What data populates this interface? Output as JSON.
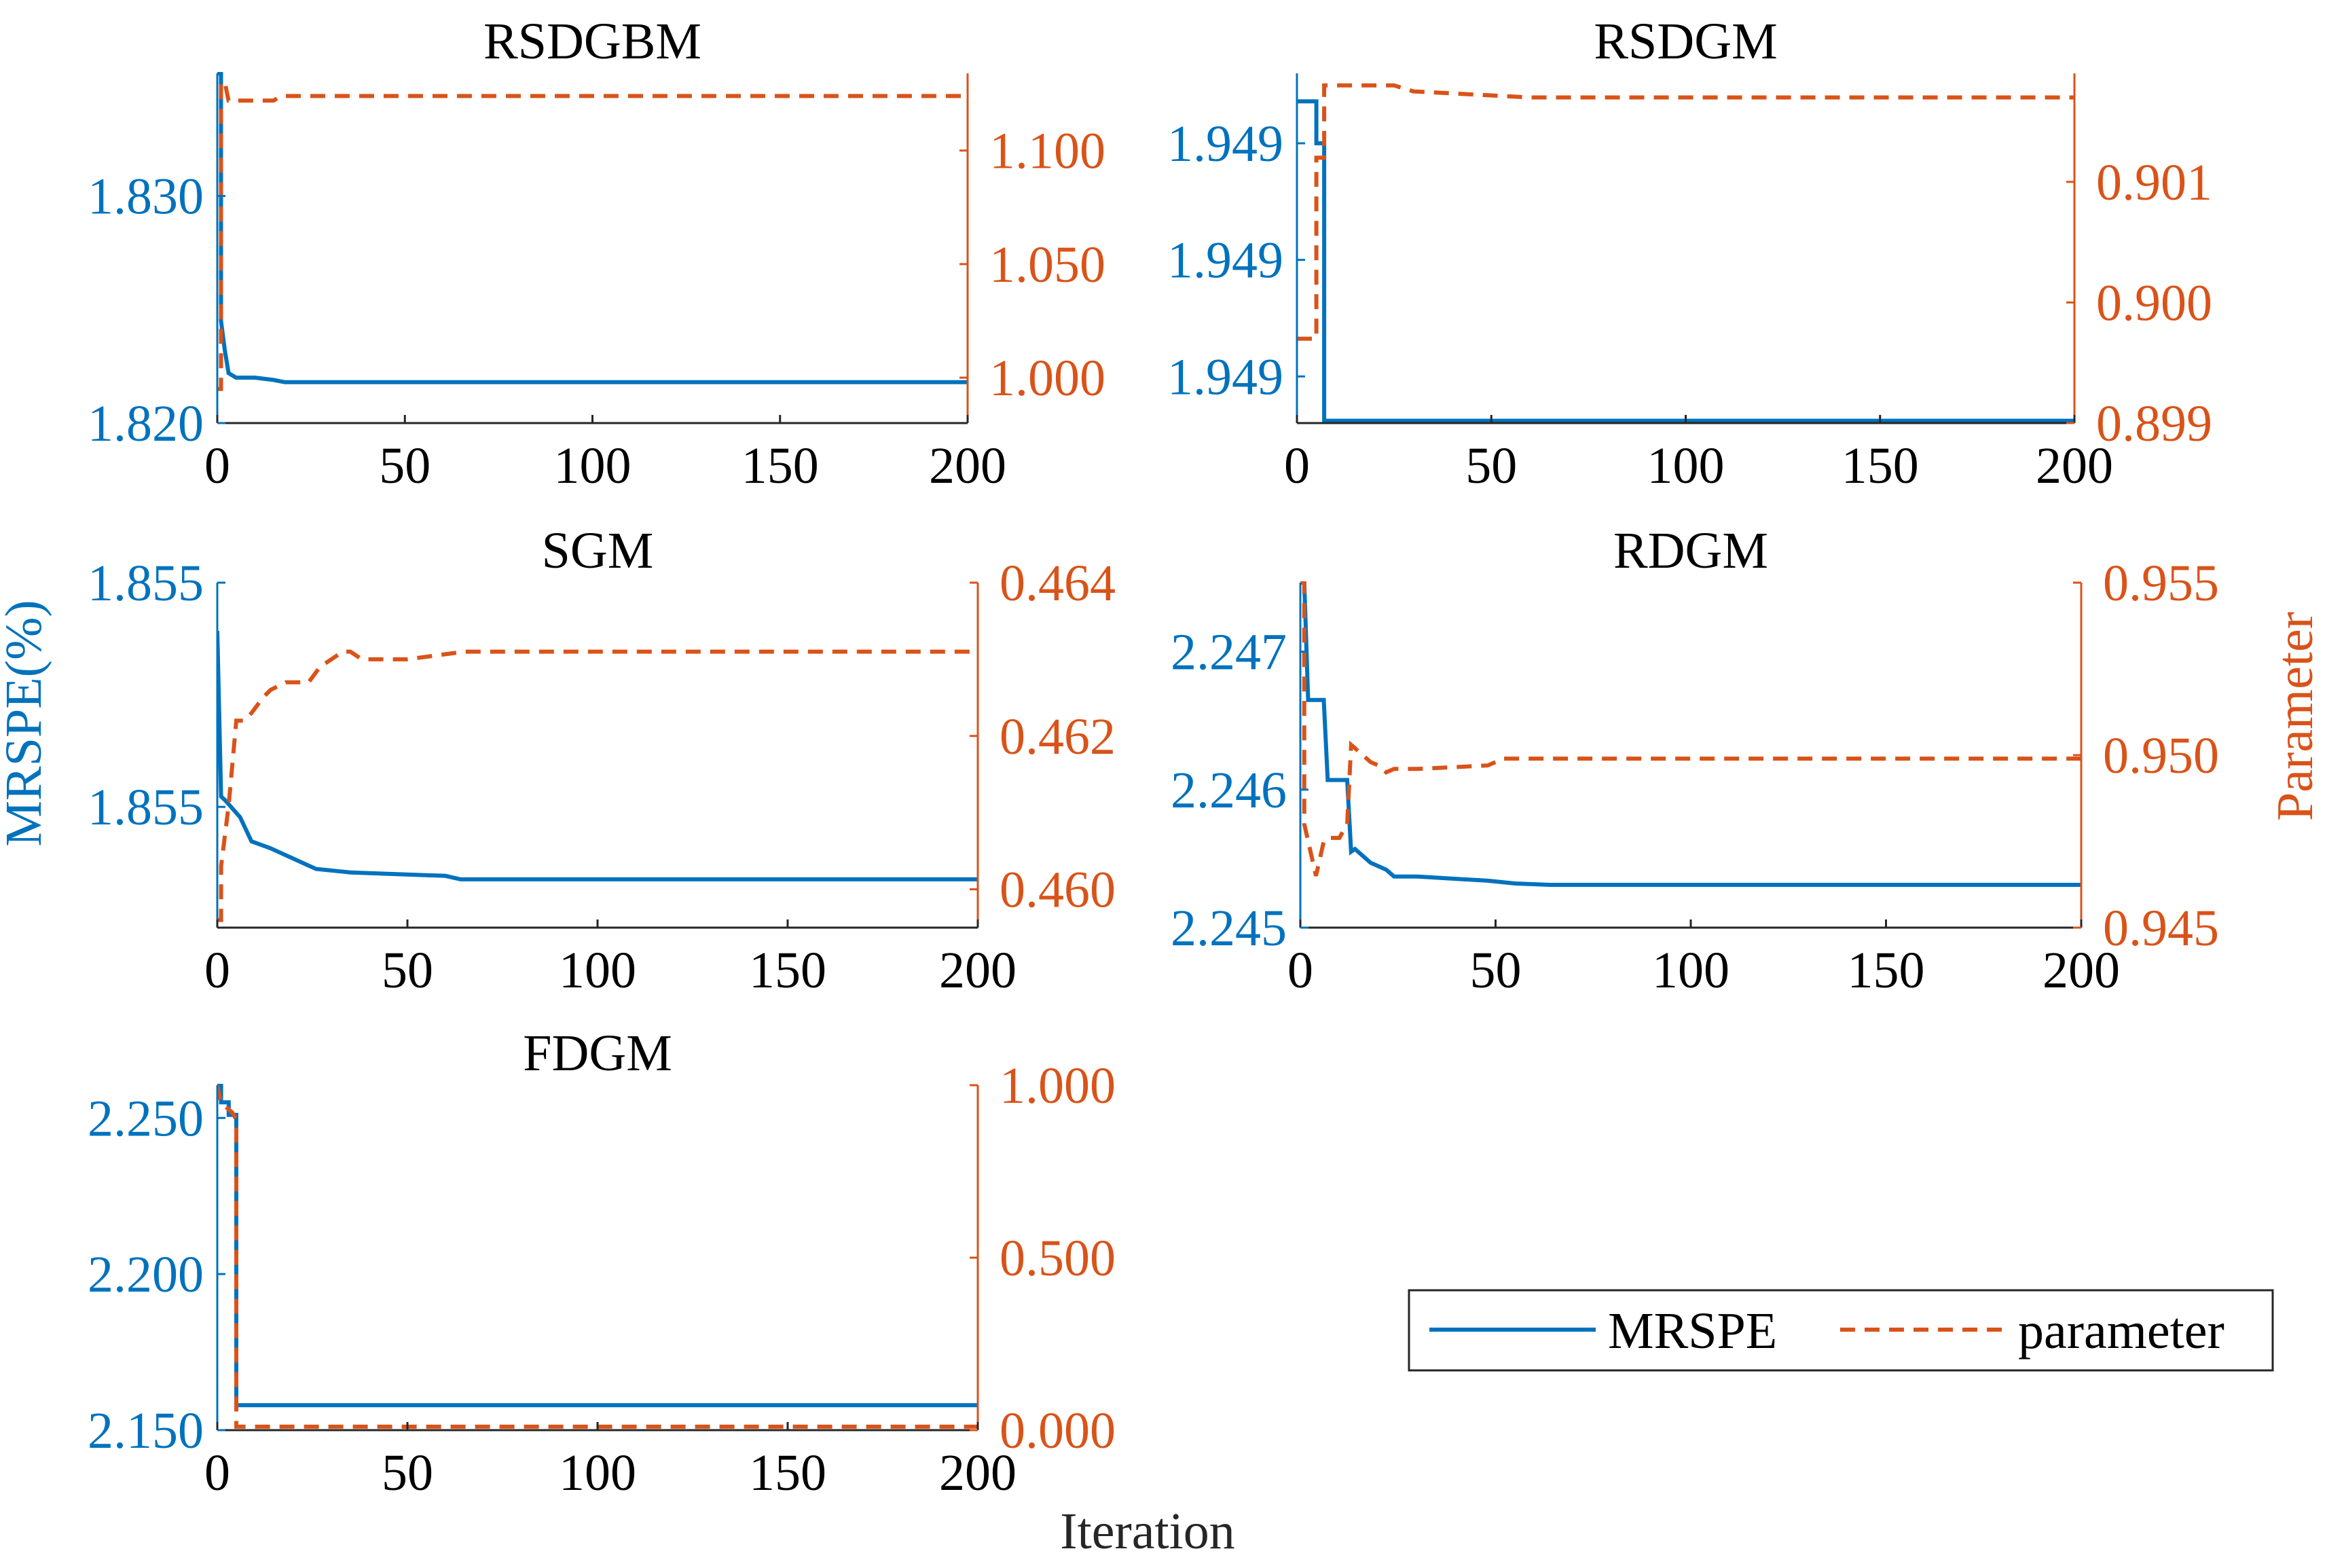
{
  "figure": {
    "shared_left_label": "MRSPE(%)",
    "shared_right_label": "Parameter",
    "shared_x_label": "Iteration"
  },
  "legend": {
    "items": [
      {
        "label": "MRSPE",
        "color": "#0072BD",
        "dash": "solid"
      },
      {
        "label": "parameter",
        "color": "#D95319",
        "dash": "dashed"
      }
    ]
  },
  "colors": {
    "left_axis": "#0072BD",
    "right_axis": "#D95319"
  },
  "chart_data": [
    {
      "type": "line",
      "title": "RSDGBM",
      "xlim": [
        0,
        200
      ],
      "xticks": [
        0,
        50,
        100,
        150,
        200
      ],
      "ylim_left": [
        1.82,
        1.8354
      ],
      "yticks_left": [
        1.82,
        1.83
      ],
      "ytick_labels_left": [
        "1.820",
        "1.830"
      ],
      "ylim_right": [
        0.98,
        1.134
      ],
      "yticks_right": [
        1.0,
        1.05,
        1.1
      ],
      "ytick_labels_right": [
        "1.000",
        "1.050",
        "1.100"
      ],
      "series": [
        {
          "name": "MRSPE",
          "axis": "left",
          "dash": "solid",
          "x": [
            0,
            1,
            1,
            2,
            3,
            5,
            10,
            15,
            18,
            20,
            200
          ],
          "y": [
            1.8354,
            1.8354,
            1.8245,
            1.8232,
            1.8222,
            1.822,
            1.822,
            1.8219,
            1.8218,
            1.8218,
            1.8218
          ]
        },
        {
          "name": "parameter",
          "axis": "right",
          "dash": "dashed",
          "x": [
            0,
            1,
            1,
            2,
            3,
            5,
            15,
            17,
            200
          ],
          "y": [
            0.995,
            0.995,
            1.13,
            1.13,
            1.122,
            1.122,
            1.122,
            1.124,
            1.124
          ]
        }
      ]
    },
    {
      "type": "line",
      "title": "RSDGM",
      "xlim": [
        0,
        200
      ],
      "xticks": [
        0,
        50,
        100,
        150,
        200
      ],
      "ylim_left": [
        1.94887,
        1.94902
      ],
      "yticks_left": [
        1.94889,
        1.94894,
        1.94899
      ],
      "ytick_labels_left": [
        "1.949",
        "1.949",
        "1.949"
      ],
      "ylim_right": [
        0.899,
        0.9019
      ],
      "yticks_right": [
        0.899,
        0.9,
        0.901
      ],
      "ytick_labels_right": [
        "0.899",
        "0.900",
        "0.901"
      ],
      "series": [
        {
          "name": "MRSPE",
          "axis": "left",
          "dash": "solid",
          "x": [
            0,
            5,
            5,
            7,
            7,
            200
          ],
          "y": [
            1.949008,
            1.949008,
            1.94899,
            1.94899,
            1.948871,
            1.948871
          ]
        },
        {
          "name": "parameter",
          "axis": "right",
          "dash": "dashed",
          "x": [
            0,
            5,
            5,
            7,
            7,
            25,
            30,
            60,
            200
          ],
          "y": [
            0.8997,
            0.8997,
            0.9012,
            0.9012,
            0.9018,
            0.9018,
            0.90175,
            0.9017,
            0.9017
          ]
        }
      ]
    },
    {
      "type": "line",
      "title": "SGM",
      "xlim": [
        0,
        200
      ],
      "xticks": [
        0,
        50,
        100,
        150,
        200
      ],
      "ylim_left": [
        1.8544,
        1.8554
      ],
      "yticks_left": [
        1.85475,
        1.8554
      ],
      "ytick_labels_left": [
        "1.855",
        "1.855"
      ],
      "ylim_right": [
        0.4595,
        0.464
      ],
      "yticks_right": [
        0.46,
        0.462,
        0.464
      ],
      "ytick_labels_right": [
        "0.460",
        "0.462",
        "0.464"
      ],
      "series": [
        {
          "name": "MRSPE",
          "axis": "left",
          "dash": "solid",
          "x": [
            0,
            1,
            2,
            6,
            9,
            14,
            24,
            26,
            35,
            60,
            64,
            200
          ],
          "y": [
            1.85526,
            1.85478,
            1.85477,
            1.85472,
            1.85465,
            1.85463,
            1.85458,
            1.85457,
            1.85456,
            1.85455,
            1.85454,
            1.85454
          ]
        },
        {
          "name": "parameter",
          "axis": "right",
          "dash": "dashed",
          "x": [
            0,
            1,
            1,
            3,
            5,
            7,
            9,
            12,
            14,
            18,
            24,
            27,
            30,
            33,
            35,
            38,
            50,
            65,
            200
          ],
          "y": [
            0.4596,
            0.4596,
            0.4603,
            0.4611,
            0.4622,
            0.4622,
            0.4623,
            0.4625,
            0.4626,
            0.4627,
            0.4627,
            0.4629,
            0.463,
            0.4631,
            0.4631,
            0.463,
            0.463,
            0.4631,
            0.4631
          ]
        }
      ]
    },
    {
      "type": "line",
      "title": "RDGM",
      "xlim": [
        0,
        200
      ],
      "xticks": [
        0,
        50,
        100,
        150,
        200
      ],
      "ylim_left": [
        2.245,
        2.2475
      ],
      "yticks_left": [
        2.245,
        2.246,
        2.247
      ],
      "ytick_labels_left": [
        "2.245",
        "2.246",
        "2.247"
      ],
      "ylim_right": [
        0.945,
        0.955
      ],
      "yticks_right": [
        0.945,
        0.95,
        0.955
      ],
      "ytick_labels_right": [
        "0.945",
        "0.950",
        "0.955"
      ],
      "series": [
        {
          "name": "MRSPE",
          "axis": "left",
          "dash": "solid",
          "x": [
            0,
            1,
            2,
            6,
            7,
            12,
            13,
            14,
            18,
            22,
            24,
            30,
            48,
            55,
            64,
            200
          ],
          "y": [
            2.2475,
            2.2475,
            2.24665,
            2.24665,
            2.24607,
            2.24607,
            2.24555,
            2.24557,
            2.24547,
            2.24542,
            2.24537,
            2.24537,
            2.24534,
            2.24532,
            2.24531,
            2.24531
          ]
        },
        {
          "name": "parameter",
          "axis": "right",
          "dash": "dashed",
          "x": [
            0,
            1,
            1,
            3,
            4,
            5,
            6,
            7,
            10,
            12,
            13,
            14,
            18,
            20,
            22,
            24,
            30,
            48,
            52,
            200
          ],
          "y": [
            0.955,
            0.955,
            0.948,
            0.947,
            0.9465,
            0.947,
            0.9475,
            0.9476,
            0.9476,
            0.948,
            0.9503,
            0.9502,
            0.9498,
            0.9497,
            0.9495,
            0.9496,
            0.9496,
            0.9497,
            0.9499,
            0.9499
          ]
        }
      ]
    },
    {
      "type": "line",
      "title": "FDGM",
      "xlim": [
        0,
        200
      ],
      "xticks": [
        0,
        50,
        100,
        150,
        200
      ],
      "ylim_left": [
        2.15,
        2.2605
      ],
      "yticks_left": [
        2.15,
        2.2,
        2.25
      ],
      "ytick_labels_left": [
        "2.150",
        "2.200",
        "2.250"
      ],
      "ylim_right": [
        0,
        1.0
      ],
      "yticks_right": [
        0,
        0.5,
        1.0
      ],
      "ytick_labels_right": [
        "0.000",
        "0.500",
        "1.000"
      ],
      "series": [
        {
          "name": "MRSPE",
          "axis": "left",
          "dash": "solid",
          "x": [
            0,
            1,
            1,
            3,
            3,
            4,
            5,
            5,
            200
          ],
          "y": [
            2.2605,
            2.2605,
            2.255,
            2.255,
            2.251,
            2.251,
            2.251,
            2.158,
            2.158
          ]
        },
        {
          "name": "parameter",
          "axis": "right",
          "dash": "dashed",
          "x": [
            0,
            1,
            3,
            4,
            5,
            5,
            200
          ],
          "y": [
            1.0,
            0.95,
            0.93,
            0.92,
            0.9,
            0.01,
            0.01
          ]
        }
      ]
    }
  ]
}
